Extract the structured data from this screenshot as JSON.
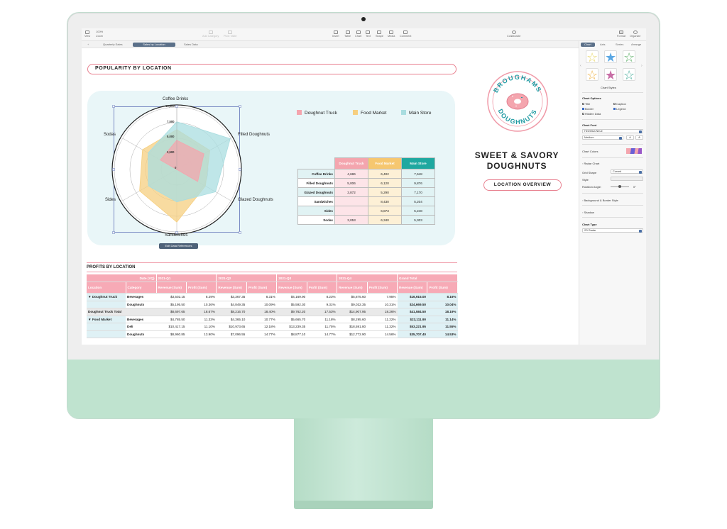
{
  "toolbar": {
    "view": "View",
    "zoom": "Zoom",
    "zoom_value": "100%",
    "add_category": "Add Category",
    "pivot_table": "Pivot Table",
    "insert": "Insert",
    "table": "Table",
    "chart": "Chart",
    "text": "Text",
    "shape": "Shape",
    "media": "Media",
    "comment": "Comment",
    "collaborate": "Collaborate",
    "format": "Format",
    "organize": "Organize"
  },
  "sheet_tabs": [
    "Quarterly Sales",
    "Sales by Location",
    "Sales Data"
  ],
  "add_sheet": "+",
  "sidebar": {
    "tabs": [
      "Chart",
      "Axis",
      "Series",
      "Arrange"
    ],
    "chart_styles_label": "Chart Styles",
    "chart_options_label": "Chart Options",
    "opt_title": "Title",
    "opt_caption": "Caption",
    "opt_border": "Border",
    "opt_legend": "Legend",
    "opt_hidden": "Hidden Data",
    "chart_font_label": "Chart Font",
    "font_name": "Helvetica Neue",
    "font_weight": "Medium",
    "font_small": "A",
    "font_big": "A",
    "chart_colors_label": "Chart Colors",
    "radar_chart_label": "Radar Chart",
    "grid_shape_label": "Grid Shape",
    "grid_shape_value": "Curved",
    "style_label": "Style",
    "rotation_label": "Rotation Angle:",
    "rotation_value": "0°",
    "bg_border_label": "Background & Border Style",
    "shadow_label": "Shadow",
    "chart_type_label": "Chart Type",
    "chart_type_value": "2D Radar",
    "accent": "#5b7089"
  },
  "doc": {
    "title_pill": "POPULARITY BY LOCATION",
    "logo_top": "BROUGHAMS",
    "logo_bottom": "DOUGHNUTS",
    "headline_1": "SWEET & SAVORY",
    "headline_2": "DOUGHNUTS",
    "location_pill": "LOCATION OVERVIEW",
    "edit_refs": "Edit Data References",
    "profits_heading": "PROFITS BY LOCATION"
  },
  "chart_data": {
    "type": "radar",
    "categories": [
      "Coffee Drinks",
      "Filled Doughnuts",
      "Glazed Doughnuts",
      "Sandwiches",
      "Sides",
      "Sodas"
    ],
    "ticks": [
      "10,000",
      "7,500",
      "5,000",
      "2,500",
      "0"
    ],
    "rmax": 10000,
    "series": [
      {
        "name": "Doughnut Truck",
        "color": "#f4a5ae",
        "values": [
          4686,
          5006,
          3872,
          0,
          0,
          3053
        ]
      },
      {
        "name": "Food Market",
        "color": "#f6cf80",
        "values": [
          6402,
          6120,
          5290,
          8430,
          6873,
          6340
        ]
      },
      {
        "name": "Main Store",
        "color": "#a9dde0",
        "values": [
          7648,
          9876,
          7170,
          5204,
          5248,
          5303
        ]
      }
    ],
    "table_rows": [
      [
        "Coffee Drinks",
        "4,686",
        "6,402",
        "7,648"
      ],
      [
        "Filled Doughnuts",
        "5,006",
        "6,120",
        "9,876"
      ],
      [
        "Glazed Doughnuts",
        "3,872",
        "5,290",
        "7,170"
      ],
      [
        "Sandwiches",
        "",
        "8,430",
        "5,204"
      ],
      [
        "Sides",
        "",
        "6,873",
        "5,248"
      ],
      [
        "Sodas",
        "3,053",
        "6,340",
        "5,303"
      ]
    ]
  },
  "profit_table": {
    "header1": [
      "Date (YQ)",
      "2021-Q1",
      "2021-Q2",
      "2021-Q3",
      "2021-Q4",
      "Grand Total"
    ],
    "header2": [
      "Location",
      "Category",
      "Revenue (Sum)",
      "Profit (Sum)",
      "Revenue (Sum)",
      "Profit (Sum)",
      "Revenue (Sum)",
      "Profit (Sum)",
      "Revenue (Sum)",
      "Profit (Sum)",
      "Revenue (Sum)",
      "Profit (Sum)"
    ],
    "rows": [
      {
        "loc": "▼ Doughnut Truck",
        "cat": "Beverages",
        "v": [
          "$3,502.15",
          "8.29%",
          "$3,367.35",
          "8.31%",
          "$4,169.90",
          "8.23%",
          "$5,875.60",
          "7.95%",
          "$16,915.00",
          "8.16%"
        ]
      },
      {
        "loc": "",
        "cat": "Doughnuts",
        "v": [
          "$5,195.50",
          "10.36%",
          "$4,849.35",
          "10.09%",
          "$5,592.30",
          "9.31%",
          "$9,032.35",
          "10.31%",
          "$24,669.50",
          "10.04%"
        ]
      },
      {
        "loc": "Doughnut Truck Total",
        "cat": "",
        "total": true,
        "v": [
          "$8,697.65",
          "18.67%",
          "$8,216.70",
          "18.40%",
          "$9,762.20",
          "17.53%",
          "$14,907.95",
          "18.26%",
          "$41,584.50",
          "18.19%"
        ]
      },
      {
        "loc": "▼ Food Market",
        "cat": "Beverages",
        "v": [
          "$4,785.50",
          "11.33%",
          "$4,365.10",
          "10.77%",
          "$5,665.70",
          "11.18%",
          "$8,295.60",
          "11.22%",
          "$23,111.90",
          "11.14%"
        ]
      },
      {
        "loc": "",
        "cat": "Deli",
        "v": [
          "$10,417.15",
          "11.10%",
          "$10,973.65",
          "12.18%",
          "$13,239.35",
          "11.75%",
          "$18,591.80",
          "11.32%",
          "$53,221.95",
          "11.55%"
        ]
      },
      {
        "loc": "",
        "cat": "Doughnuts",
        "v": [
          "$8,960.85",
          "13.90%",
          "$7,096.55",
          "14.77%",
          "$8,877.10",
          "14.77%",
          "$12,772.90",
          "14.56%",
          "$35,707.40",
          "14.53%"
        ]
      }
    ]
  }
}
